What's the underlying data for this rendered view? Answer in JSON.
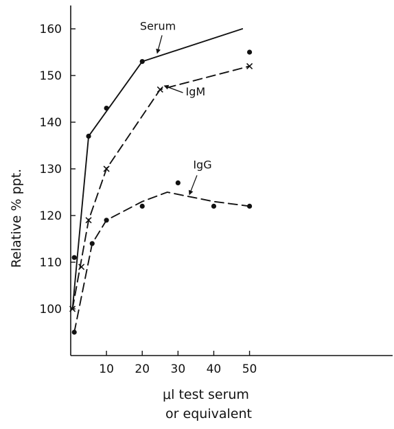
{
  "chart_data": {
    "type": "line",
    "title": "",
    "ylabel": "Relative % ppt.",
    "xlabel_lines": [
      "μl test serum",
      "or equivalent"
    ],
    "x_ticks": [
      10,
      20,
      30,
      40,
      50
    ],
    "y_ticks": [
      100,
      110,
      120,
      130,
      140,
      150,
      160
    ],
    "xlim": [
      0,
      90
    ],
    "ylim": [
      90,
      165
    ],
    "grid": false,
    "series": [
      {
        "name": "Serum",
        "line_style": "solid",
        "line_points": [
          {
            "x": 0.5,
            "y": 100
          },
          {
            "x": 5,
            "y": 137
          },
          {
            "x": 20,
            "y": 153
          },
          {
            "x": 48,
            "y": 160
          }
        ],
        "markers": [
          {
            "x": 1,
            "y": 111,
            "symbol": "dot"
          },
          {
            "x": 5,
            "y": 137,
            "symbol": "dot"
          },
          {
            "x": 10,
            "y": 143,
            "symbol": "dot"
          },
          {
            "x": 20,
            "y": 153,
            "symbol": "dot"
          },
          {
            "x": 50,
            "y": 155,
            "symbol": "dot"
          }
        ]
      },
      {
        "name": "IgM",
        "line_style": "dashed",
        "line_points": [
          {
            "x": 0.5,
            "y": 100
          },
          {
            "x": 5,
            "y": 119
          },
          {
            "x": 10,
            "y": 130
          },
          {
            "x": 25,
            "y": 147
          },
          {
            "x": 50,
            "y": 152
          }
        ],
        "markers": [
          {
            "x": 0.5,
            "y": 100,
            "symbol": "x"
          },
          {
            "x": 3,
            "y": 109,
            "symbol": "x"
          },
          {
            "x": 5,
            "y": 119,
            "symbol": "x"
          },
          {
            "x": 10,
            "y": 130,
            "symbol": "x"
          },
          {
            "x": 25,
            "y": 147,
            "symbol": "x"
          },
          {
            "x": 50,
            "y": 152,
            "symbol": "x"
          }
        ]
      },
      {
        "name": "IgG",
        "line_style": "dashed",
        "line_points": [
          {
            "x": 1,
            "y": 95
          },
          {
            "x": 6,
            "y": 114
          },
          {
            "x": 10,
            "y": 119
          },
          {
            "x": 20,
            "y": 123
          },
          {
            "x": 27,
            "y": 125
          },
          {
            "x": 40,
            "y": 123
          },
          {
            "x": 50,
            "y": 122
          }
        ],
        "markers": [
          {
            "x": 1,
            "y": 95,
            "symbol": "dot"
          },
          {
            "x": 6,
            "y": 114,
            "symbol": "dot"
          },
          {
            "x": 10,
            "y": 119,
            "symbol": "dot"
          },
          {
            "x": 20,
            "y": 122,
            "symbol": "dot"
          },
          {
            "x": 30,
            "y": 127,
            "symbol": "dot"
          },
          {
            "x": 40,
            "y": 122,
            "symbol": "dot"
          },
          {
            "x": 50,
            "y": 122,
            "symbol": "dot"
          }
        ]
      }
    ],
    "annotations": [
      {
        "text": "Serum",
        "points_to": {
          "x": 24,
          "y": 154.5
        }
      },
      {
        "text": "IgM",
        "points_to": {
          "x": 26,
          "y": 147.5
        }
      },
      {
        "text": "IgG",
        "points_to": {
          "x": 33,
          "y": 124.2
        }
      }
    ],
    "colors": {
      "ink": "#111111",
      "background": "#ffffff"
    }
  }
}
